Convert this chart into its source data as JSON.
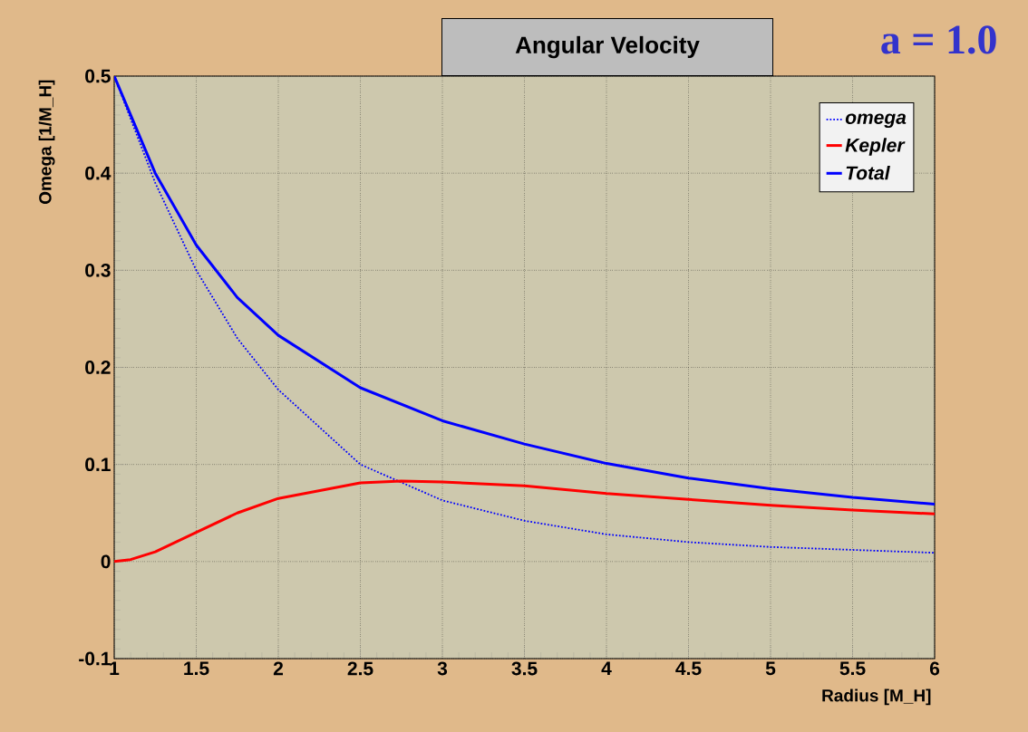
{
  "chart_data": {
    "type": "line",
    "title": "Angular Velocity",
    "xlabel": "Radius [M_H]",
    "ylabel": "Omega [1/M_H]",
    "annotations": [
      "a = 1.0"
    ],
    "xlim": [
      1,
      6
    ],
    "ylim": [
      -0.1,
      0.5
    ],
    "xticks": [
      1,
      1.5,
      2,
      2.5,
      3,
      3.5,
      4,
      4.5,
      5,
      5.5,
      6
    ],
    "yticks": [
      -0.1,
      0,
      0.1,
      0.2,
      0.3,
      0.4,
      0.5
    ],
    "grid": true,
    "legend": "top right",
    "series": [
      {
        "name": "omega",
        "color": "#0000ff",
        "line_style": "dotted",
        "x": [
          1,
          1.25,
          1.5,
          1.75,
          2,
          2.5,
          3,
          3.5,
          4,
          4.5,
          5,
          5.5,
          6
        ],
        "values": [
          0.5,
          0.39,
          0.3,
          0.23,
          0.177,
          0.1,
          0.063,
          0.042,
          0.028,
          0.02,
          0.015,
          0.012,
          0.009
        ]
      },
      {
        "name": "Kepler",
        "color": "#ff0000",
        "line_style": "solid",
        "x": [
          1,
          1.1,
          1.25,
          1.5,
          1.75,
          2,
          2.5,
          2.75,
          3,
          3.5,
          4,
          4.5,
          5,
          5.5,
          6
        ],
        "values": [
          0,
          0.002,
          0.01,
          0.03,
          0.05,
          0.065,
          0.081,
          0.083,
          0.082,
          0.078,
          0.07,
          0.064,
          0.058,
          0.053,
          0.049
        ]
      },
      {
        "name": "Total",
        "color": "#0000ff",
        "line_style": "solid",
        "x": [
          1,
          1.25,
          1.5,
          1.75,
          2,
          2.5,
          3,
          3.5,
          4,
          4.5,
          5,
          5.5,
          6
        ],
        "values": [
          0.5,
          0.4,
          0.326,
          0.272,
          0.233,
          0.179,
          0.145,
          0.121,
          0.101,
          0.086,
          0.075,
          0.066,
          0.059
        ]
      }
    ]
  }
}
